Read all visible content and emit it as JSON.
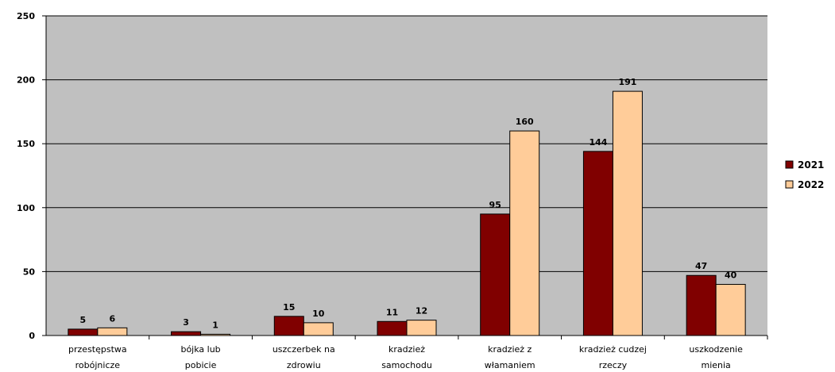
{
  "chart_data": {
    "type": "bar",
    "categories": [
      [
        "przestępstwa",
        "robójnicze"
      ],
      [
        "bójka lub",
        "pobicie"
      ],
      [
        "uszczerbek na",
        "zdrowiu"
      ],
      [
        "kradzież",
        "samochodu"
      ],
      [
        "kradzież z",
        "włamaniem"
      ],
      [
        "kradzież cudzej",
        "rzeczy"
      ],
      [
        "uszkodzenie",
        "mienia"
      ]
    ],
    "series": [
      {
        "name": "2021",
        "color": "#800000",
        "values": [
          5,
          3,
          15,
          11,
          95,
          144,
          47
        ]
      },
      {
        "name": "2022",
        "color": "#FFCC99",
        "values": [
          6,
          1,
          10,
          12,
          160,
          191,
          40
        ]
      }
    ],
    "title": "",
    "xlabel": "",
    "ylabel": "",
    "ylim": [
      0,
      250
    ],
    "yticks": [
      0,
      50,
      100,
      150,
      200,
      250
    ],
    "grid": true,
    "plot_background": "#C0C0C0",
    "legend": "right"
  }
}
